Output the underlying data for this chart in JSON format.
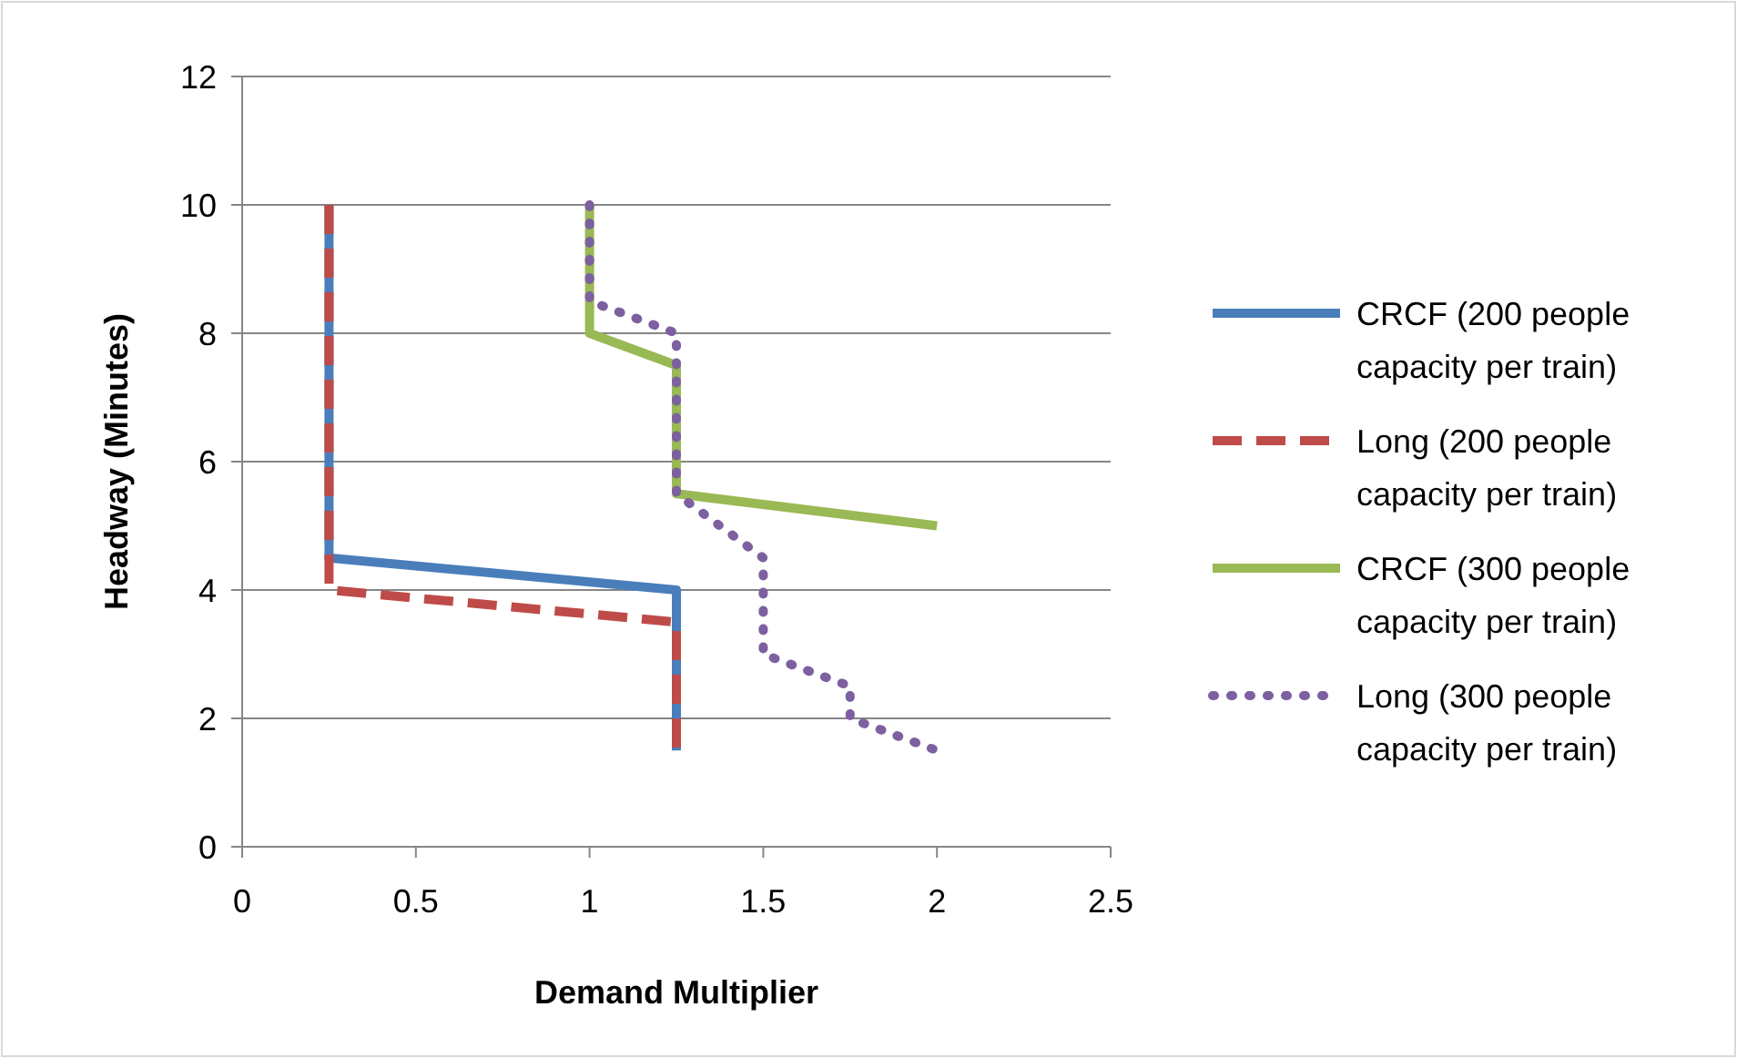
{
  "chart_data": {
    "type": "line",
    "xlabel": "Demand Multiplier",
    "ylabel": "Headway (Minutes)",
    "xlim": [
      0,
      2.5
    ],
    "xticks": [
      0,
      0.5,
      1,
      1.5,
      2,
      2.5
    ],
    "ylim": [
      0,
      12
    ],
    "yticks": [
      0,
      2,
      4,
      6,
      8,
      10,
      12
    ],
    "grid": "y",
    "legend": "right",
    "series": [
      {
        "name": "CRCF (200 people capacity per train)",
        "color": "#4a7ebb",
        "line_style": "solid",
        "x": [
          0.25,
          0.25,
          1.25,
          1.25
        ],
        "values": [
          10,
          4.5,
          4,
          1.5
        ]
      },
      {
        "name": "Long (200 people capacity per train)",
        "color": "#be4b48",
        "line_style": "dashed",
        "x": [
          0.25,
          0.25,
          1.25,
          1.25
        ],
        "values": [
          10,
          4,
          3.5,
          1.5
        ]
      },
      {
        "name": "CRCF (300 people capacity per train)",
        "color": "#98b954",
        "line_style": "solid",
        "x": [
          1,
          1,
          1.25,
          1.25,
          2
        ],
        "values": [
          10,
          8,
          7.5,
          5.5,
          5
        ]
      },
      {
        "name": "Long (300 people capacity per train)",
        "color": "#7d60a0",
        "line_style": "dotted",
        "x": [
          1,
          1,
          1.25,
          1.25,
          1.5,
          1.5,
          1.75,
          1.75,
          2
        ],
        "values": [
          10,
          8.5,
          8,
          5.5,
          4.5,
          3,
          2.5,
          2,
          1.5
        ]
      }
    ]
  }
}
